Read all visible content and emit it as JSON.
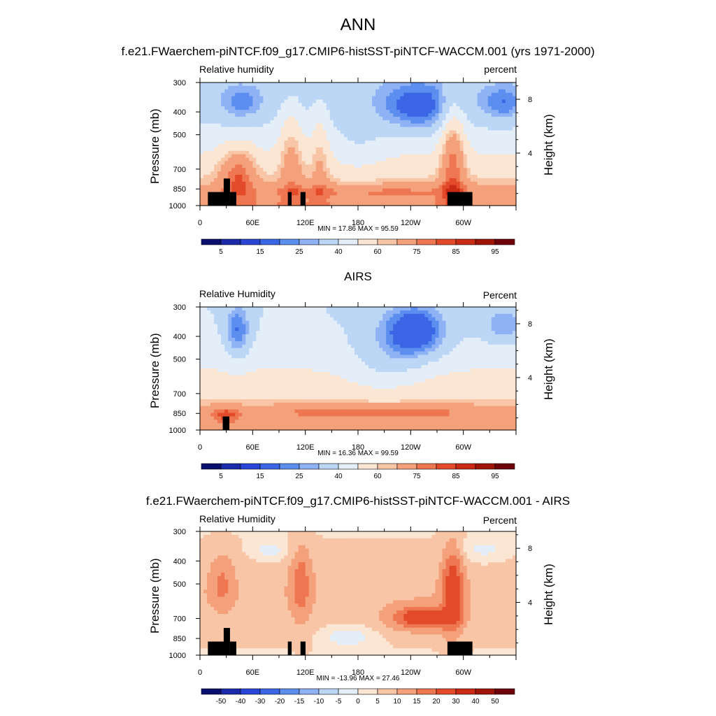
{
  "main_title": "ANN",
  "chart_data": [
    {
      "type": "heatmap",
      "title": "f.e21.FWaerchem-piNTCF.f09_g17.CMIP6-histSST-piNTCF-WACCM.001 (yrs 1971-2000)",
      "variable_label": "Relative humidity",
      "units_label": "percent",
      "ylabel": "Pressure (mb)",
      "ylabel_right": "Height (km)",
      "x_ticks": [
        "0",
        "60E",
        "120E",
        "180",
        "120W",
        "60W"
      ],
      "y_ticks": [
        "300",
        "400",
        "500",
        "700",
        "850",
        "1000"
      ],
      "y_right_ticks": [
        "8",
        "4"
      ],
      "min_max": "MIN = 17.86  MAX = 95.59",
      "colorbar_labels": [
        "5",
        "15",
        "25",
        "40",
        "60",
        "75",
        "85",
        "95"
      ],
      "min": 17.86,
      "max": 95.59,
      "palette": "BlueWhiteOrangeRed"
    },
    {
      "type": "heatmap",
      "title": "AIRS",
      "variable_label": "Relative Humidity",
      "units_label": "Percent",
      "ylabel": "Pressure (mb)",
      "ylabel_right": "Height (km)",
      "x_ticks": [
        "0",
        "60E",
        "120E",
        "180",
        "120W",
        "60W"
      ],
      "y_ticks": [
        "300",
        "400",
        "500",
        "700",
        "850",
        "1000"
      ],
      "y_right_ticks": [
        "8",
        "4"
      ],
      "min_max": "MIN = 16.36  MAX = 99.59",
      "colorbar_labels": [
        "5",
        "15",
        "25",
        "40",
        "60",
        "75",
        "85",
        "95"
      ],
      "min": 16.36,
      "max": 99.59,
      "palette": "BlueWhiteOrangeRed"
    },
    {
      "type": "heatmap",
      "title": "f.e21.FWaerchem-piNTCF.f09_g17.CMIP6-histSST-piNTCF-WACCM.001 - AIRS",
      "variable_label": "Relative Humidity",
      "units_label": "Percent",
      "ylabel": "Pressure (mb)",
      "ylabel_right": "Height (km)",
      "x_ticks": [
        "0",
        "60E",
        "120E",
        "180",
        "120W",
        "60W"
      ],
      "y_ticks": [
        "300",
        "400",
        "500",
        "700",
        "850",
        "1000"
      ],
      "y_right_ticks": [
        "8",
        "4"
      ],
      "min_max": "MIN = -13.96  MAX = 27.46",
      "colorbar_labels": [
        "-50",
        "-40",
        "-30",
        "-20",
        "-15",
        "-10",
        "-5",
        "0",
        "5",
        "10",
        "15",
        "20",
        "30",
        "40",
        "50"
      ],
      "min": -13.96,
      "max": 27.46,
      "palette": "BlueWhiteOrangeRed"
    }
  ],
  "colorbar_colors": [
    "#0a0e6e",
    "#1a2aa8",
    "#2a45d6",
    "#3a66e6",
    "#5c8ef0",
    "#8fb2f4",
    "#bcd6f6",
    "#e4eef8",
    "#fbe6d4",
    "#f8c6a6",
    "#f4a07a",
    "#ee7650",
    "#e24a2a",
    "#c82a14",
    "#a01408",
    "#70000a"
  ],
  "terrain_color": "#000000"
}
